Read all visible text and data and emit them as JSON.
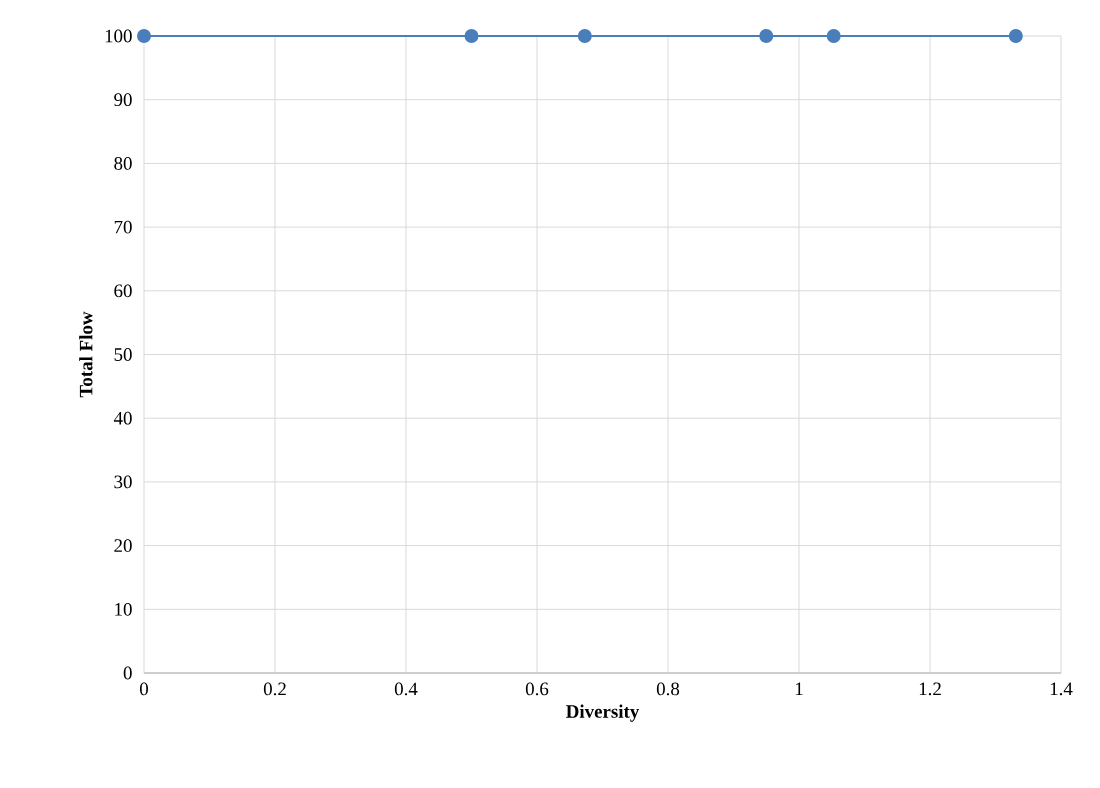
{
  "chart_data": {
    "type": "line",
    "xlabel": "Diversity",
    "ylabel": "Total Flow",
    "x": [
      0,
      0.5,
      0.673,
      0.95,
      1.053,
      1.331
    ],
    "series": [
      {
        "color": "#4a7ebb",
        "values": [
          100,
          100,
          100,
          100,
          100,
          100
        ]
      }
    ],
    "xlim": [
      0,
      1.4
    ],
    "xticks": [
      0,
      0.2,
      0.4,
      0.6,
      0.8,
      1,
      1.2,
      1.4
    ],
    "ylim": [
      0,
      100
    ],
    "yticks": [
      0,
      10,
      20,
      30,
      40,
      50,
      60,
      70,
      80,
      90,
      100
    ],
    "grid": true,
    "marker": "circle",
    "line_style": "solid"
  }
}
